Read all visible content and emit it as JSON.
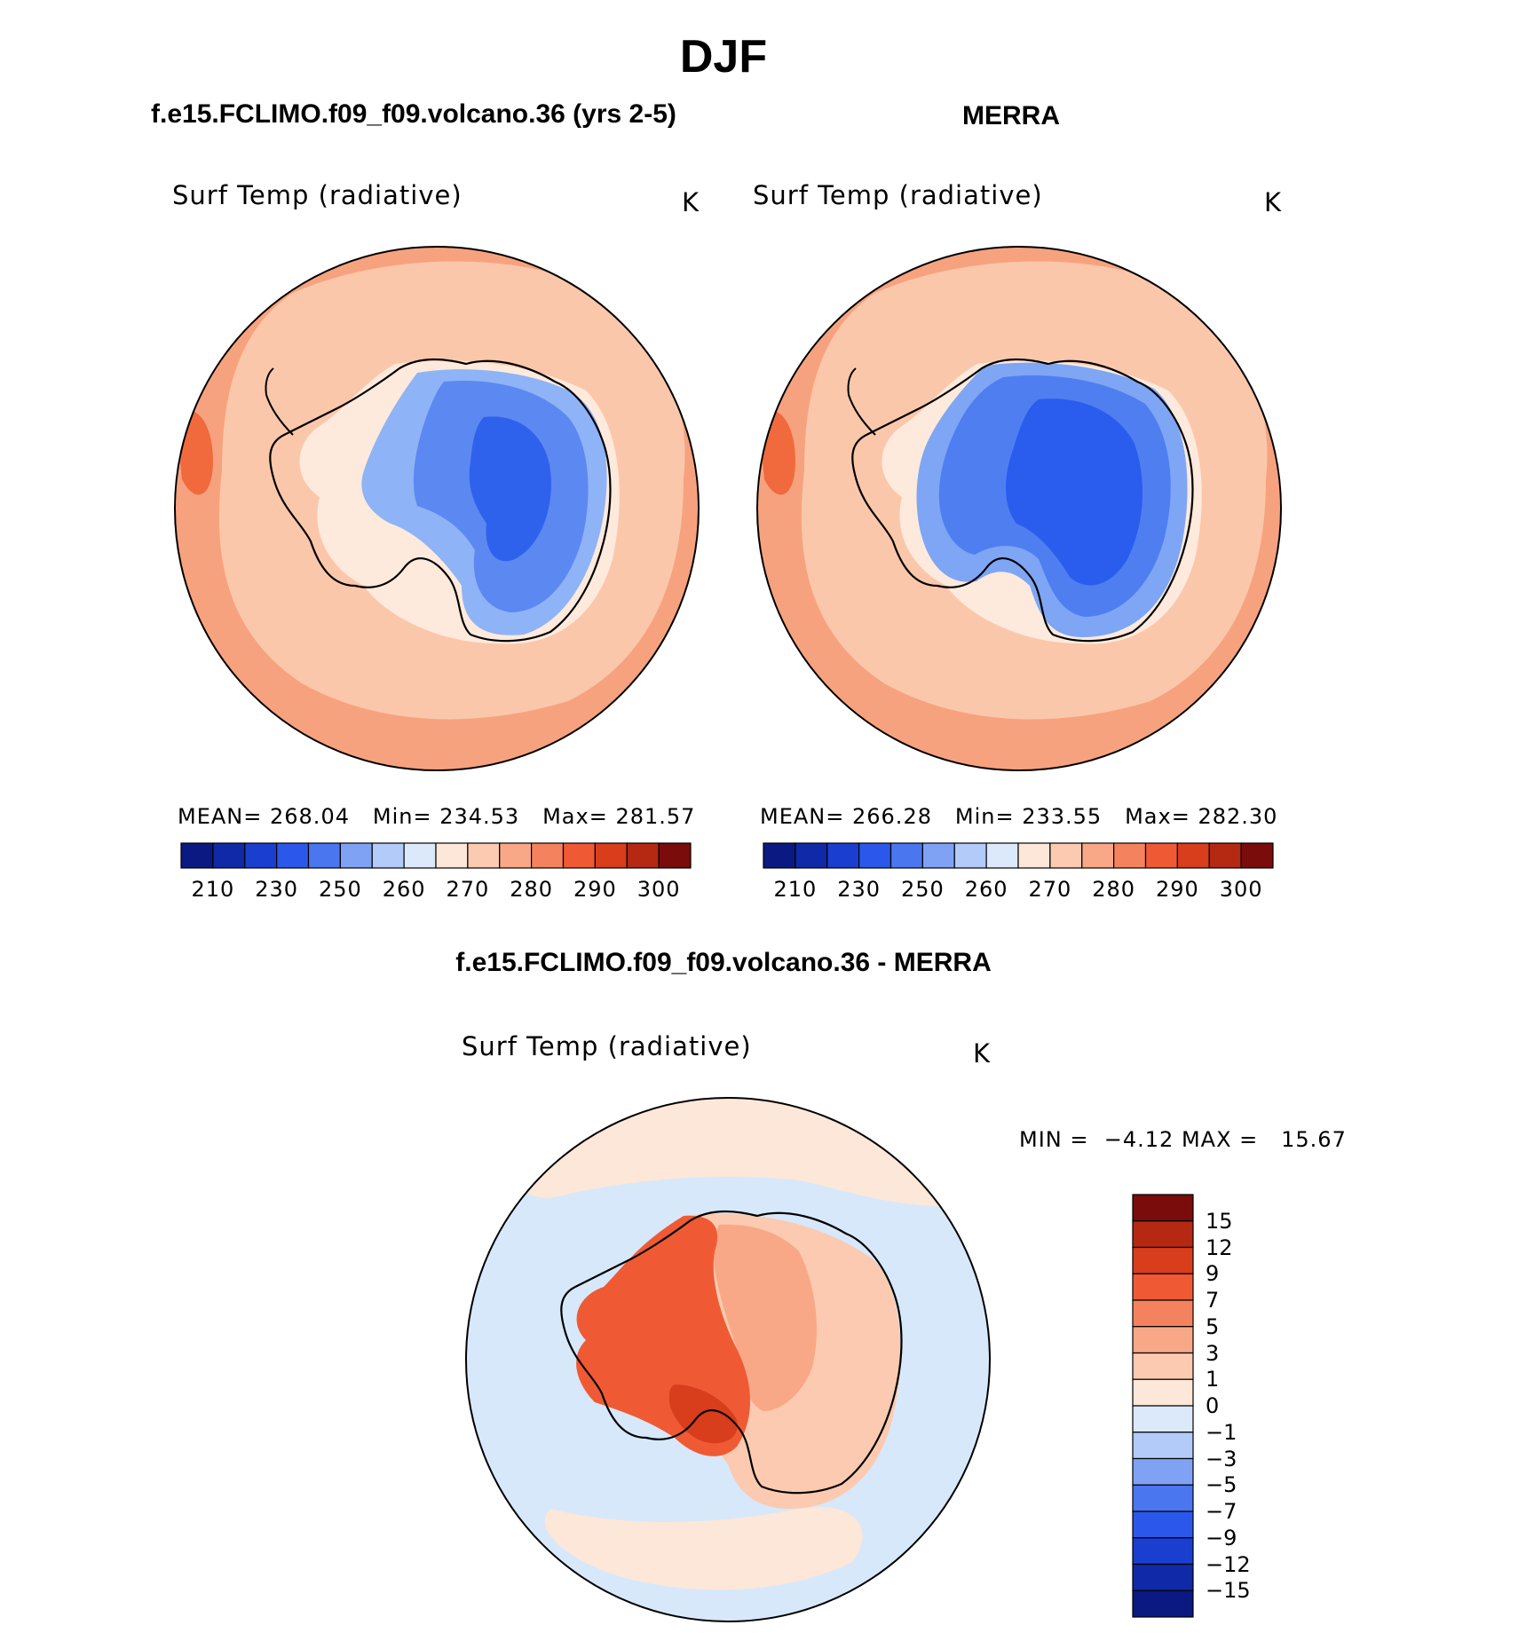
{
  "figure": {
    "title": "DJF",
    "left_title": "f.e15.FCLIMO.f09_f09.volcano.36 (yrs 2-5)",
    "right_title": "MERRA",
    "diff_title": "f.e15.FCLIMO.f09_f09.volcano.36 - MERRA"
  },
  "panels": [
    {
      "variable": "Surf Temp (radiative)",
      "units": "K",
      "mean_label": "MEAN=",
      "mean": "268.04",
      "min_label": "Min=",
      "min": "234.53",
      "max_label": "Max=",
      "max": "281.57",
      "colors": {
        "ocean_outer": "#f7a27e",
        "ocean": "#fbc7ab",
        "coast": "#feeadc",
        "ice_edge": "#8fb3f7",
        "ice_mid": "#5c88f1",
        "ice_core": "#2f62ec",
        "warm_edge": "#f06a3e"
      }
    },
    {
      "variable": "Surf Temp (radiative)",
      "units": "K",
      "mean_label": "MEAN=",
      "mean": "266.28",
      "min_label": "Min=",
      "min": "233.55",
      "max_label": "Max=",
      "max": "282.30",
      "colors": {
        "ocean_outer": "#f7a27e",
        "ocean": "#fbc7ab",
        "coast": "#feeadc",
        "ice_edge": "#7ea6f5",
        "ice_mid": "#4f7ef0",
        "ice_core": "#2a5ced",
        "warm_edge": "#f06a3e"
      }
    }
  ],
  "abs_colorbar": {
    "colors": [
      "#0a1a82",
      "#0f29a8",
      "#1a3fd0",
      "#2b58ea",
      "#4a76f0",
      "#7fa2f5",
      "#b2cbf8",
      "#dbe9fb",
      "#fde7d8",
      "#fbcab0",
      "#f8a886",
      "#f5825e",
      "#ef5a35",
      "#d83d1c",
      "#b52812",
      "#7a0c0c"
    ],
    "ticks": [
      "210",
      "230",
      "250",
      "260",
      "270",
      "280",
      "290",
      "300"
    ]
  },
  "diff_panel": {
    "variable": "Surf Temp (radiative)",
    "units": "K",
    "min_label": "MIN =",
    "min": "−4.12",
    "max_label": "MAX =",
    "max": "15.67",
    "colors": {
      "ocean": "#d7e8fb",
      "ocean_warm": "#fde7d8",
      "land_hot": "#ef5a35",
      "land_hotter": "#d83d1c",
      "land_warm": "#f8a886",
      "land_mild": "#fbcab0"
    }
  },
  "diff_colorbar": {
    "colors": [
      "#7a0c0c",
      "#b52812",
      "#d83d1c",
      "#ef5a35",
      "#f5825e",
      "#f8a886",
      "#fbcab0",
      "#fde7d8",
      "#dbe9fb",
      "#b2cbf8",
      "#7fa2f5",
      "#4a76f0",
      "#2b58ea",
      "#1a3fd0",
      "#0f29a8",
      "#0a1a82"
    ],
    "ticks": [
      "15",
      "12",
      "9",
      "7",
      "5",
      "3",
      "1",
      "0",
      "−1",
      "−3",
      "−5",
      "−7",
      "−9",
      "−12",
      "−15"
    ]
  }
}
